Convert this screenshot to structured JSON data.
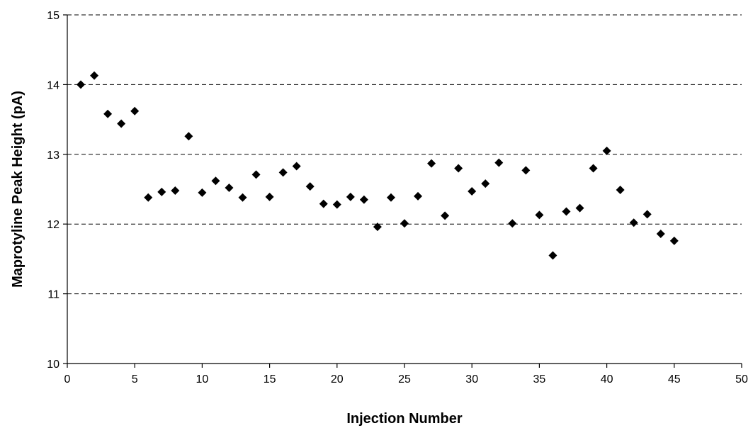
{
  "chart_data": {
    "type": "scatter",
    "title": "",
    "xlabel": "Injection Number",
    "ylabel": "Maprotyline Peak Height (pA)",
    "xlim": [
      0,
      50
    ],
    "ylim": [
      10,
      15
    ],
    "x_ticks": [
      0,
      5,
      10,
      15,
      20,
      25,
      30,
      35,
      40,
      45,
      50
    ],
    "y_ticks": [
      10,
      11,
      12,
      13,
      14,
      15
    ],
    "grid": "horizontal dashed",
    "marker": "diamond",
    "marker_color": "#000000",
    "series": [
      {
        "x": [
          1,
          2,
          3,
          4,
          5,
          6,
          7,
          8,
          9,
          10,
          11,
          12,
          13,
          14,
          15,
          16,
          17,
          18,
          19,
          20,
          21,
          22,
          23,
          24,
          25,
          26,
          27,
          28,
          29,
          30,
          31,
          32,
          33,
          34,
          35,
          36,
          37,
          38,
          39,
          40,
          41,
          42,
          43,
          44,
          45
        ],
        "y": [
          14.0,
          14.13,
          13.58,
          13.44,
          13.62,
          12.38,
          12.46,
          12.48,
          13.26,
          12.45,
          12.62,
          12.52,
          12.38,
          12.71,
          12.39,
          12.74,
          12.83,
          12.54,
          12.29,
          12.28,
          12.39,
          12.35,
          11.96,
          12.38,
          12.01,
          12.4,
          12.87,
          12.12,
          12.8,
          12.47,
          12.58,
          12.88,
          12.01,
          12.77,
          12.13,
          11.55,
          12.18,
          12.23,
          12.8,
          13.05,
          12.49,
          12.02,
          12.14,
          11.86,
          11.76
        ]
      }
    ]
  }
}
